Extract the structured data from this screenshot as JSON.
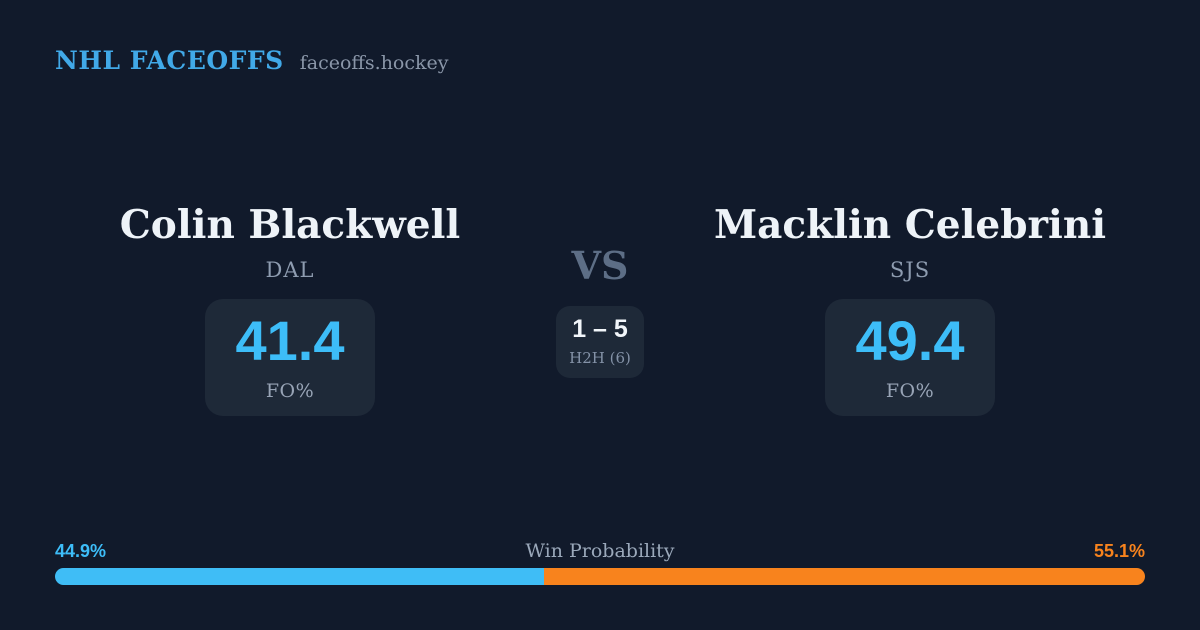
{
  "brand": {
    "title": "NHL FACEOFFS",
    "domain": "faceoffs.hockey"
  },
  "matchup": {
    "left": {
      "name": "Colin Blackwell",
      "team": "DAL",
      "fo_value": "41.4",
      "fo_label": "FO%"
    },
    "right": {
      "name": "Macklin Celebrini",
      "team": "SJS",
      "fo_value": "49.4",
      "fo_label": "FO%"
    },
    "vs_label": "VS",
    "h2h_score": "1 – 5",
    "h2h_label": "H2H (6)"
  },
  "win_probability": {
    "title": "Win Probability",
    "left_label": "44.9%",
    "right_label": "55.1%",
    "left_value": 44.9,
    "right_value": 55.1
  },
  "colors": {
    "background": "#111a2b",
    "card": "#1e2938",
    "header_blue": "#41a9e8",
    "accent_blue": "#3dbdf8",
    "accent_orange": "#f8831d",
    "text_primary": "#eef3f8",
    "text_muted": "#8e9cb0"
  },
  "chart_data": {
    "type": "bar",
    "title": "Win Probability",
    "categories": [
      "Colin Blackwell (DAL)",
      "Macklin Celebrini (SJS)"
    ],
    "values": [
      44.9,
      55.1
    ],
    "unit": "%",
    "colors": [
      "#3fbdf6",
      "#f8831d"
    ],
    "faceoff_pct": {
      "Colin Blackwell": 41.4,
      "Macklin Celebrini": 49.4
    },
    "head_to_head": {
      "record": "1 – 5",
      "games": 6
    },
    "legend_position": "bar-ends",
    "axis": "none"
  }
}
